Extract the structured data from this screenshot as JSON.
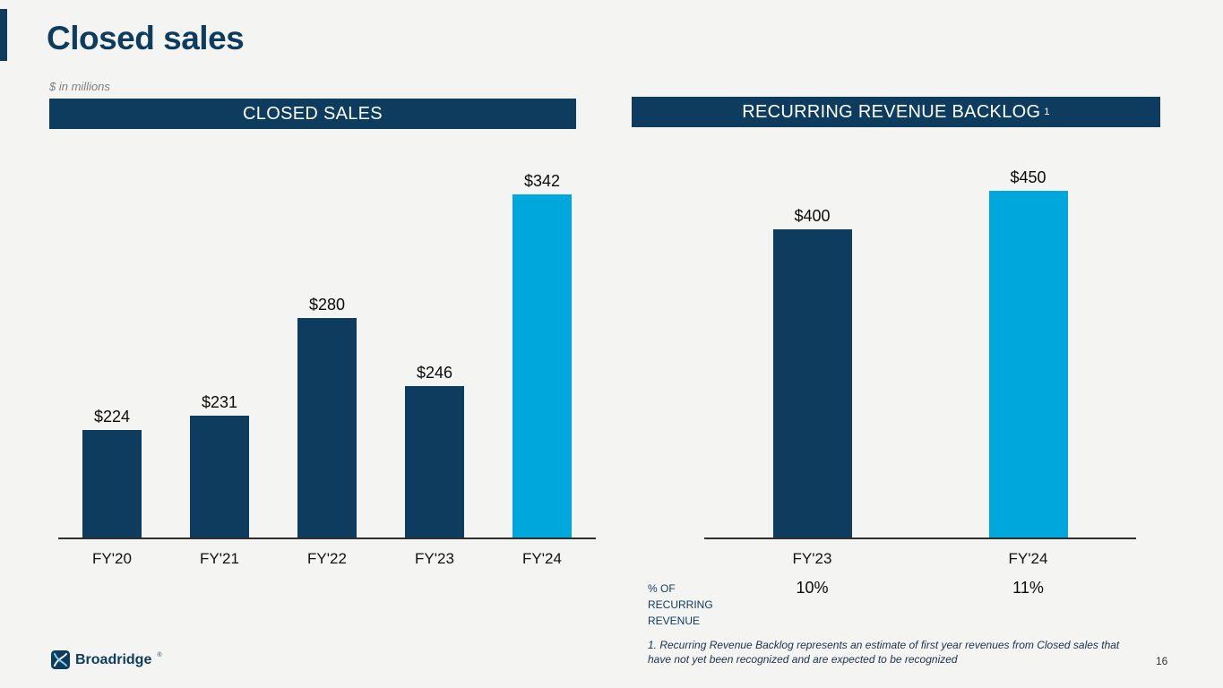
{
  "slide": {
    "title": "Closed sales",
    "subtitle": "$ in millions",
    "page_number": "16",
    "footnote": "1. Recurring Revenue Backlog represents an estimate of first year revenues from Closed sales that have not yet been recognized and are expected to be recognized",
    "logo_text": "Broadridge",
    "logo_mark": "®"
  },
  "colors": {
    "navy": "#0d3c5f",
    "cyan": "#00a7dc",
    "background": "#f4f4f2",
    "header_text": "#ffffff"
  },
  "chart_data": [
    {
      "type": "bar",
      "title": "CLOSED SALES",
      "categories": [
        "FY'20",
        "FY'21",
        "FY'22",
        "FY'23",
        "FY'24"
      ],
      "values": [
        224,
        231,
        280,
        246,
        342
      ],
      "labels": [
        "$224",
        "$231",
        "$280",
        "$246",
        "$342"
      ],
      "bar_colors": [
        "navy",
        "navy",
        "navy",
        "navy",
        "cyan"
      ],
      "ylim": [
        170,
        363
      ],
      "unit": "$ in millions",
      "grid": false,
      "legend": false
    },
    {
      "type": "bar",
      "title": "RECURRING REVENUE BACKLOG",
      "title_superscript": "1",
      "categories": [
        "FY'23",
        "FY'24"
      ],
      "values": [
        400,
        450
      ],
      "labels": [
        "$400",
        "$450"
      ],
      "bar_colors": [
        "navy",
        "cyan"
      ],
      "ylim": [
        0,
        500
      ],
      "unit": "$ in millions",
      "grid": false,
      "legend": false,
      "footer_row": {
        "label": "% OF RECURRING REVENUE",
        "values": [
          "10%",
          "11%"
        ]
      }
    }
  ]
}
